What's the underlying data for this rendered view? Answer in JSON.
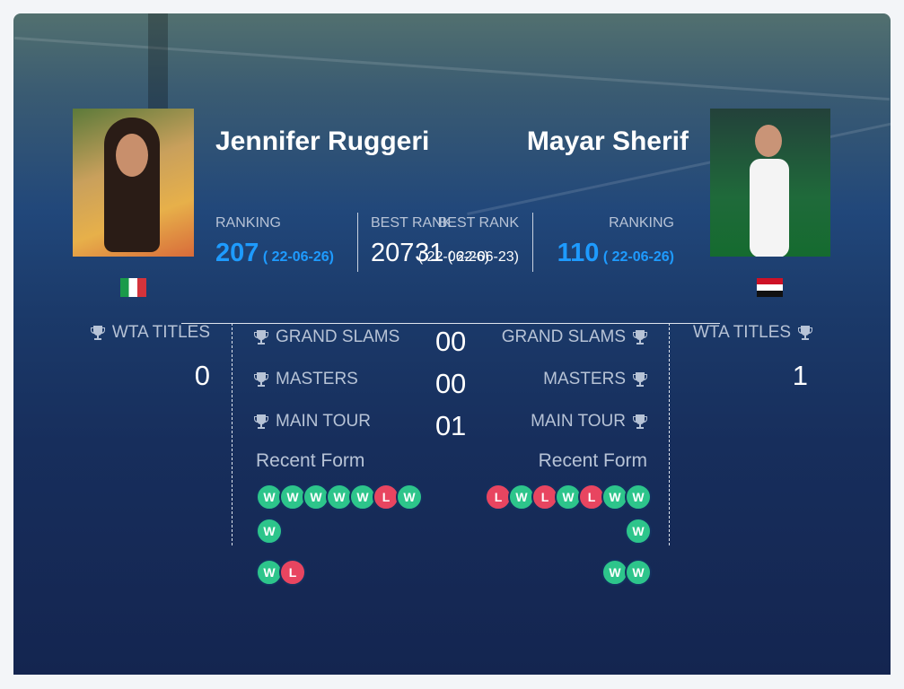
{
  "player1": {
    "name": "Jennifer Ruggeri",
    "ranking_label": "RANKING",
    "ranking": "207",
    "ranking_date": "( 22-06-26)",
    "best_rank_label": "BEST RANK",
    "best_rank": "207",
    "best_rank_date": "( 22-06-26)",
    "wta_titles": "0",
    "recent_form": [
      "W",
      "W",
      "W",
      "W",
      "W",
      "L",
      "W",
      "W",
      "W",
      "L"
    ]
  },
  "player2": {
    "name": "Mayar Sherif",
    "ranking_label": "RANKING",
    "ranking": "110",
    "ranking_date": "( 22-06-26)",
    "best_rank_label": "BEST RANK",
    "best_rank": "31",
    "best_rank_date": "( 22-06-23)",
    "wta_titles": "1",
    "recent_form": [
      "L",
      "W",
      "L",
      "W",
      "L",
      "W",
      "W",
      "W",
      "W",
      "W"
    ]
  },
  "wta_titles_label": "WTA TITLES",
  "stats": [
    {
      "label": "GRAND SLAMS",
      "player1": "0",
      "player2": "0"
    },
    {
      "label": "MASTERS",
      "player1": "0",
      "player2": "0"
    },
    {
      "label": "MAIN TOUR",
      "player1": "0",
      "player2": "1"
    }
  ],
  "recent_form_label": "Recent Form"
}
